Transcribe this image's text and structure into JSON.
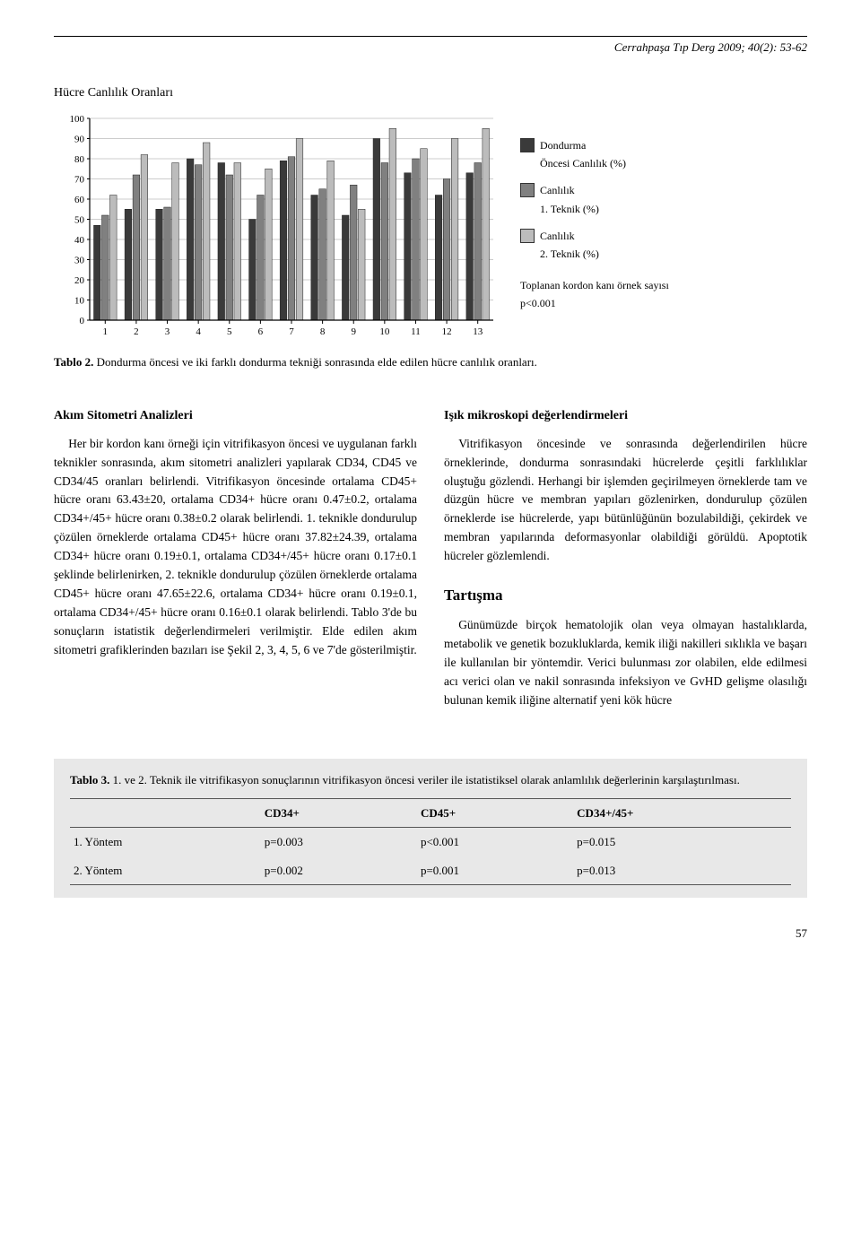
{
  "journal_header": "Cerrahpaşa Tıp Derg 2009; 40(2): 53-62",
  "figure": {
    "title": "Hücre Canlılık Oranları",
    "type": "bar",
    "categories": [
      "1",
      "2",
      "3",
      "4",
      "5",
      "6",
      "7",
      "8",
      "9",
      "10",
      "11",
      "12",
      "13"
    ],
    "ytick_step": 10,
    "ylim": [
      0,
      100
    ],
    "series": [
      {
        "name": "Dondurma Öncesi Canlılık (%)",
        "color": "#3a3a3a",
        "values": [
          47,
          55,
          55,
          80,
          78,
          50,
          79,
          62,
          52,
          90,
          73,
          62,
          73
        ]
      },
      {
        "name": "Canlılık 1. Teknik (%)",
        "color": "#808080",
        "values": [
          52,
          72,
          56,
          77,
          72,
          62,
          81,
          65,
          67,
          78,
          80,
          70,
          78
        ]
      },
      {
        "name": "Canlılık 2. Teknik (%)",
        "color": "#bcbcbc",
        "values": [
          62,
          82,
          78,
          88,
          78,
          75,
          90,
          79,
          55,
          95,
          85,
          90,
          95
        ]
      }
    ],
    "legend_items": [
      {
        "swatch": "#3a3a3a",
        "label_line1": "Dondurma",
        "label_line2": "Öncesi Canlılık (%)"
      },
      {
        "swatch": "#808080",
        "label_line1": "Canlılık",
        "label_line2": "1. Teknik (%)"
      },
      {
        "swatch": "#bcbcbc",
        "label_line1": "Canlılık",
        "label_line2": "2. Teknik (%)"
      }
    ],
    "subcaption_line1": "Toplanan kordon kanı örnek sayısı",
    "subcaption_line2": "p<0.001",
    "background_color": "#ffffff",
    "grid_color": "#999999",
    "axis_color": "#000000",
    "label_fontsize": 11
  },
  "tablo2_label": "Tablo 2.",
  "tablo2_caption": "Dondurma öncesi ve iki farklı dondurma tekniği sonrasında elde edilen hücre canlılık oranları.",
  "left": {
    "heading": "Akım Sitometri Analizleri",
    "p1": "Her bir kordon kanı örneği için vitrifikasyon öncesi ve uygulanan farklı teknikler sonrasında, akım sitometri analizleri yapılarak CD34, CD45 ve CD34/45 oranları belirlendi. Vitrifikasyon öncesinde ortalama CD45+ hücre oranı 63.43±20, ortalama CD34+ hücre oranı 0.47±0.2, ortalama CD34+/45+ hücre oranı 0.38±0.2 olarak belirlendi. 1. teknikle dondurulup çözülen örneklerde ortalama CD45+ hücre oranı 37.82±24.39, ortalama CD34+ hücre oranı 0.19±0.1, ortalama CD34+/45+ hücre oranı 0.17±0.1 şeklinde belirlenirken, 2. teknikle dondurulup çözülen örneklerde ortalama CD45+ hücre oranı 47.65±22.6, ortalama CD34+ hücre oranı 0.19±0.1, ortalama CD34+/45+ hücre oranı 0.16±0.1 olarak belirlendi. Tablo 3'de bu sonuçların istatistik değerlendirmeleri verilmiştir. Elde edilen akım sitometri grafiklerinden bazıları ise Şekil 2, 3, 4, 5, 6 ve 7'de gösterilmiştir."
  },
  "right": {
    "heading1": "Işık mikroskopi değerlendirmeleri",
    "p1": "Vitrifikasyon öncesinde ve sonrasında değerlendirilen hücre örneklerinde, dondurma sonrasındaki hücrelerde çeşitli farklılıklar oluştuğu gözlendi. Herhangi bir işlemden geçirilmeyen örneklerde tam ve düzgün hücre ve membran yapıları gözlenirken, dondurulup çözülen örneklerde ise hücrelerde, yapı bütünlüğünün bozulabildiği, çekirdek ve membran yapılarında deformasyonlar olabildiği görüldü. Apoptotik hücreler gözlemlendi.",
    "heading2": "Tartışma",
    "p2": "Günümüzde birçok hematolojik olan veya olmayan hastalıklarda, metabolik ve genetik bozukluklarda, kemik iliği nakilleri sıklıkla ve başarı ile kullanılan bir yöntemdir. Verici bulunması zor olabilen, elde edilmesi acı verici olan ve nakil sonrasında infeksiyon ve GvHD gelişme olasılığı bulunan kemik iliğine alternatif yeni kök hücre"
  },
  "table3": {
    "label": "Tablo 3.",
    "caption": "1. ve 2. Teknik ile vitrifikasyon sonuçlarının vitrifikasyon öncesi veriler ile istatistiksel olarak anlamlılık değerlerinin karşılaştırılması.",
    "columns": [
      "",
      "CD34+",
      "CD45+",
      "CD34+/45+"
    ],
    "rows": [
      [
        "1. Yöntem",
        "p=0.003",
        "p<0.001",
        "p=0.015"
      ],
      [
        "2. Yöntem",
        "p=0.002",
        "p=0.001",
        "p=0.013"
      ]
    ]
  },
  "page_number": "57"
}
